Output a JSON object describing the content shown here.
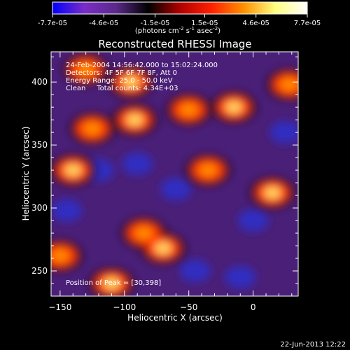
{
  "colorbar": {
    "tick_labels": [
      "-7.7e-05",
      "-4.6e-05",
      "-1.5e-05",
      "1.5e-05",
      "4.6e-05",
      "7.7e-05"
    ],
    "tick_values": [
      -7.7e-05,
      -4.6e-05,
      -1.5e-05,
      1.5e-05,
      4.6e-05,
      7.7e-05
    ],
    "unit_prefix": "(photons cm",
    "unit_exp1": "-2",
    "unit_mid": " s",
    "unit_exp2": "-1",
    "unit_suffix": " asec",
    "unit_exp3": "-2",
    "unit_close": ")"
  },
  "chart_data": {
    "type": "heatmap",
    "title": "Reconstructed RHESSI Image",
    "xlabel": "Heliocentric X (arcsec)",
    "ylabel": "Heliocentric Y (arcsec)",
    "xlim": [
      -157,
      35
    ],
    "ylim": [
      230,
      424
    ],
    "x_ticks": [
      -150,
      -100,
      -50,
      0
    ],
    "x_tick_labels": [
      "−150",
      "−100",
      "−50",
      "0"
    ],
    "y_ticks": [
      250,
      300,
      350,
      400
    ],
    "y_tick_labels": [
      "250",
      "300",
      "350",
      "400"
    ],
    "value_range": [
      -7.7e-05,
      7.7e-05
    ],
    "colormap": [
      "#0000ff",
      "#7b2cc6",
      "#5a2a8a",
      "#000000",
      "#b00000",
      "#ff2000",
      "#ff9000",
      "#ffff80",
      "#ffffff"
    ],
    "annotations": [
      "24-Feb-2004 14:56:42.000 to 15:02:24.000",
      "Detectors: 4F 5F 6F 7F 8F, Att 0",
      "Energy Range: 25.0 - 50.0 keV",
      "Clean     Total counts: 4.34E+03"
    ],
    "peak_label": "Position of Peak = [30,398]",
    "bright_regions": [
      {
        "x": -130,
        "y": 410
      },
      {
        "x": -95,
        "y": 400
      },
      {
        "x": -125,
        "y": 363
      },
      {
        "x": -92,
        "y": 370
      },
      {
        "x": -50,
        "y": 378
      },
      {
        "x": -15,
        "y": 380
      },
      {
        "x": 28,
        "y": 398
      },
      {
        "x": -70,
        "y": 268
      },
      {
        "x": -85,
        "y": 280
      },
      {
        "x": -140,
        "y": 330
      },
      {
        "x": -150,
        "y": 262
      },
      {
        "x": -110,
        "y": 240
      },
      {
        "x": -35,
        "y": 330
      },
      {
        "x": 15,
        "y": 312
      }
    ],
    "dim_regions": [
      {
        "x": -145,
        "y": 298
      },
      {
        "x": -120,
        "y": 330
      },
      {
        "x": -90,
        "y": 335
      },
      {
        "x": -45,
        "y": 250
      },
      {
        "x": -10,
        "y": 245
      },
      {
        "x": 0,
        "y": 290
      },
      {
        "x": 25,
        "y": 360
      },
      {
        "x": -60,
        "y": 315
      }
    ]
  },
  "footer_date": "22-Jun-2013 12:22"
}
